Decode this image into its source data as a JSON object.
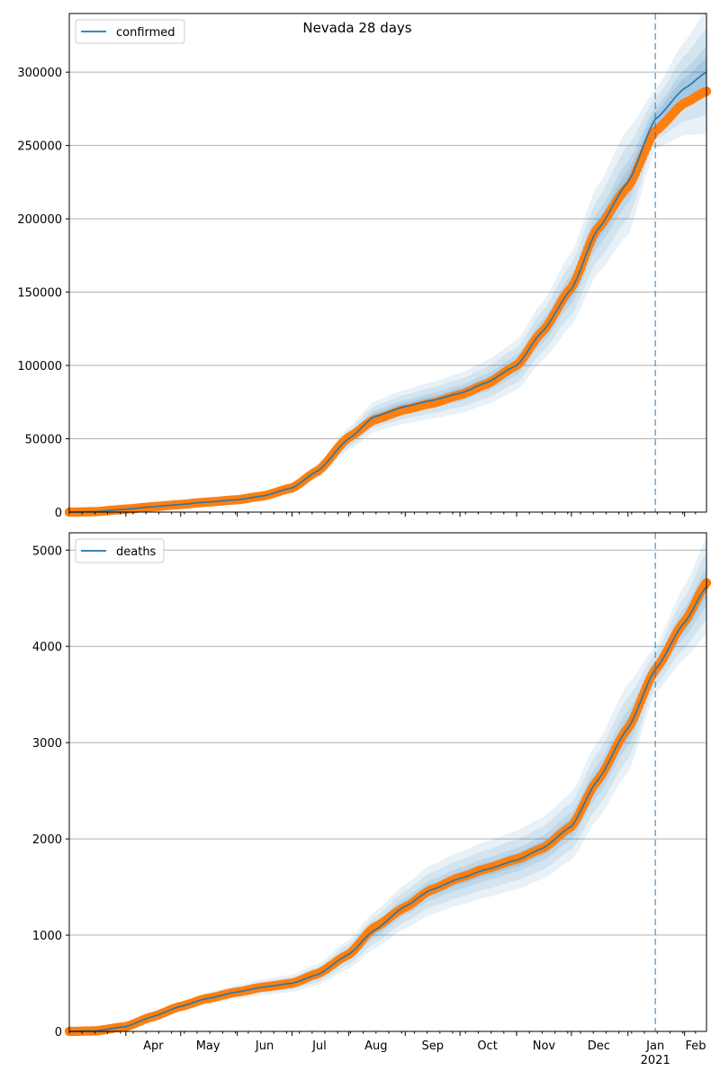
{
  "title": "Nevada 28 days",
  "colors": {
    "model": "#1f77b4",
    "observed": "#ff7f0e",
    "band": "#1f77b4",
    "grid": "#b0b0b0"
  },
  "x_axis": {
    "month_labels": [
      "Apr",
      "May",
      "Jun",
      "Jul",
      "Aug",
      "Sep",
      "Oct",
      "Nov",
      "Dec",
      "Jan",
      "Feb"
    ],
    "year_label": "2021",
    "start": "2020-03-01",
    "end": "2021-02-13",
    "forecast_marker": "2021-01-16"
  },
  "chart_data": [
    {
      "type": "line",
      "legend": [
        "confirmed"
      ],
      "legend_position": "top-left",
      "grid": true,
      "ylim": [
        0,
        340000
      ],
      "yticks": [
        "0",
        "50000",
        "100000",
        "150000",
        "200000",
        "250000",
        "300000"
      ],
      "series": [
        {
          "name": "confirmed",
          "role": "model",
          "dates": [
            "2020-03-01",
            "2020-03-15",
            "2020-04-01",
            "2020-04-15",
            "2020-05-01",
            "2020-05-15",
            "2020-06-01",
            "2020-06-15",
            "2020-07-01",
            "2020-07-15",
            "2020-08-01",
            "2020-08-15",
            "2020-09-01",
            "2020-09-15",
            "2020-10-01",
            "2020-10-15",
            "2020-11-01",
            "2020-11-15",
            "2020-12-01",
            "2020-12-15",
            "2021-01-01",
            "2021-01-16",
            "2021-02-01",
            "2021-02-13"
          ],
          "values": [
            0,
            300,
            2000,
            3600,
            5200,
            6800,
            8400,
            11000,
            16500,
            28000,
            50000,
            65000,
            72000,
            76000,
            81000,
            88000,
            100000,
            123000,
            152000,
            192000,
            225000,
            268000,
            289000,
            300000
          ],
          "band_1sd": [
            0,
            0,
            200,
            300,
            400,
            500,
            600,
            900,
            1400,
            2400,
            4000,
            5200,
            5800,
            6200,
            6800,
            7500,
            8500,
            10000,
            12500,
            15000,
            18000,
            10000,
            16000,
            21000
          ],
          "band_2sd": [
            0,
            0,
            400,
            600,
            800,
            1000,
            1200,
            1800,
            2800,
            4800,
            8000,
            10400,
            11600,
            12400,
            13600,
            15000,
            17000,
            20000,
            25000,
            30000,
            36000,
            20000,
            32000,
            42000
          ]
        },
        {
          "name": "observed",
          "role": "observed",
          "dates": [
            "2020-03-01",
            "2020-03-15",
            "2020-04-01",
            "2020-04-15",
            "2020-05-01",
            "2020-05-15",
            "2020-06-01",
            "2020-06-15",
            "2020-07-01",
            "2020-07-15",
            "2020-08-01",
            "2020-08-15",
            "2020-09-01",
            "2020-09-15",
            "2020-10-01",
            "2020-10-15",
            "2020-11-01",
            "2020-11-15",
            "2020-12-01",
            "2020-12-15",
            "2021-01-01",
            "2021-01-16",
            "2021-02-01",
            "2021-02-13"
          ],
          "values": [
            0,
            300,
            2000,
            3600,
            5200,
            6800,
            8400,
            11000,
            16500,
            28000,
            51000,
            63000,
            70000,
            74000,
            80000,
            87000,
            100000,
            123000,
            153000,
            193000,
            222000,
            260000,
            279000,
            287000
          ]
        }
      ]
    },
    {
      "type": "line",
      "legend": [
        "deaths"
      ],
      "legend_position": "top-left",
      "grid": true,
      "ylim": [
        0,
        5180
      ],
      "yticks": [
        "0",
        "1000",
        "2000",
        "3000",
        "4000",
        "5000"
      ],
      "series": [
        {
          "name": "deaths",
          "role": "model",
          "dates": [
            "2020-03-01",
            "2020-03-15",
            "2020-04-01",
            "2020-04-15",
            "2020-05-01",
            "2020-05-15",
            "2020-06-01",
            "2020-06-15",
            "2020-07-01",
            "2020-07-15",
            "2020-08-01",
            "2020-08-15",
            "2020-09-01",
            "2020-09-15",
            "2020-10-01",
            "2020-10-15",
            "2020-11-01",
            "2020-11-15",
            "2020-12-01",
            "2020-12-15",
            "2021-01-01",
            "2021-01-16",
            "2021-02-01",
            "2021-02-13"
          ],
          "values": [
            0,
            5,
            50,
            150,
            260,
            340,
            410,
            460,
            500,
            590,
            800,
            1050,
            1300,
            1470,
            1590,
            1680,
            1780,
            1900,
            2130,
            2600,
            3150,
            3760,
            4250,
            4620
          ],
          "band_1sd": [
            0,
            0,
            8,
            16,
            24,
            30,
            36,
            40,
            45,
            55,
            75,
            95,
            115,
            128,
            138,
            145,
            152,
            160,
            175,
            200,
            230,
            120,
            190,
            250
          ],
          "band_2sd": [
            0,
            0,
            16,
            32,
            48,
            60,
            72,
            80,
            90,
            110,
            150,
            190,
            230,
            256,
            276,
            290,
            304,
            320,
            350,
            400,
            460,
            240,
            380,
            500
          ]
        },
        {
          "name": "observed",
          "role": "observed",
          "dates": [
            "2020-03-01",
            "2020-03-15",
            "2020-04-01",
            "2020-04-15",
            "2020-05-01",
            "2020-05-15",
            "2020-06-01",
            "2020-06-15",
            "2020-07-01",
            "2020-07-15",
            "2020-08-01",
            "2020-08-15",
            "2020-09-01",
            "2020-09-15",
            "2020-10-01",
            "2020-10-15",
            "2020-11-01",
            "2020-11-15",
            "2020-12-01",
            "2020-12-15",
            "2021-01-01",
            "2021-01-16",
            "2021-02-01",
            "2021-02-13"
          ],
          "values": [
            0,
            5,
            50,
            150,
            260,
            340,
            410,
            460,
            500,
            600,
            800,
            1080,
            1290,
            1470,
            1600,
            1690,
            1790,
            1900,
            2130,
            2600,
            3150,
            3760,
            4260,
            4660
          ]
        }
      ]
    }
  ]
}
